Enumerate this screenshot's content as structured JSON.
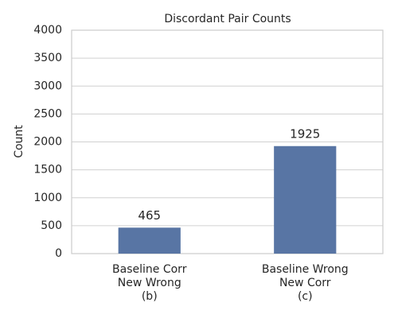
{
  "chart_data": {
    "type": "bar",
    "title": "Discordant Pair Counts",
    "y_label": "Count",
    "categories": [
      "Baseline Corr\nNew Wrong\n(b)",
      "Baseline Wrong\nNew Corr\n(c)"
    ],
    "values": [
      465,
      1925
    ],
    "color": "#5875a4",
    "ylim": [
      0,
      4000
    ],
    "yticks": [
      0,
      500,
      1000,
      1500,
      2000,
      2500,
      3000,
      3500,
      4000
    ],
    "grid": true
  }
}
